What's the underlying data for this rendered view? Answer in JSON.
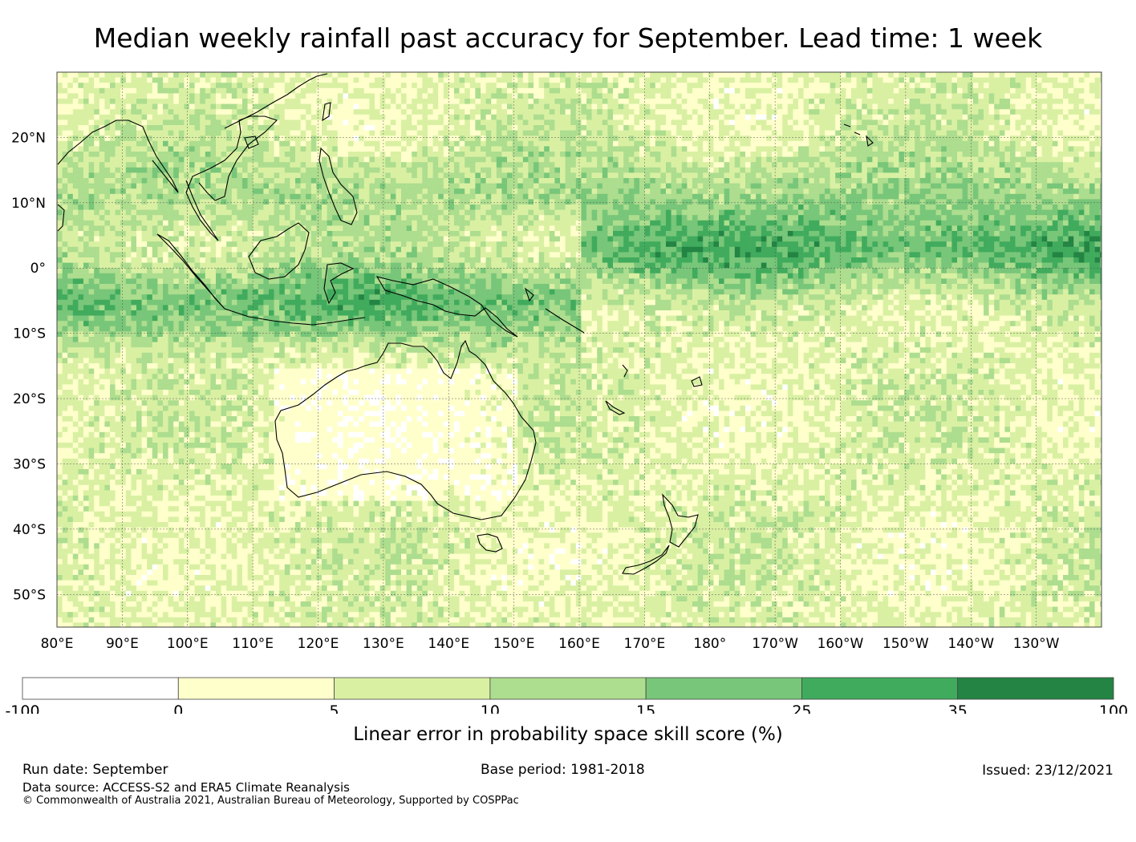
{
  "title": "Median weekly rainfall past accuracy for September. Lead time: 1 week",
  "map": {
    "lon_labels": [
      "80°E",
      "90°E",
      "100°E",
      "110°E",
      "120°E",
      "130°E",
      "140°E",
      "150°E",
      "160°E",
      "170°E",
      "180°",
      "170°W",
      "160°W",
      "150°W",
      "140°W",
      "130°W"
    ],
    "lat_labels": [
      "20°N",
      "10°N",
      "0°",
      "10°S",
      "20°S",
      "30°S",
      "40°S",
      "50°S"
    ],
    "extent": {
      "lon_min": 80,
      "lon_max": 240,
      "lat_min": -55,
      "lat_max": 30
    }
  },
  "colorbar": {
    "label": "Linear error in probability space skill score (%)",
    "bounds": [
      "-100",
      "0",
      "5",
      "10",
      "15",
      "25",
      "35",
      "100"
    ],
    "colors": [
      "#ffffff",
      "#ffffcc",
      "#d9f0a3",
      "#addd8e",
      "#78c679",
      "#41ab5d",
      "#238443"
    ]
  },
  "footer": {
    "run_date": "Run date: September",
    "base_period": "Base period: 1981-2018",
    "issued": "Issued: 23/12/2021",
    "data_source": "Data source: ACCESS-S2 and ERA5 Climate Reanalysis",
    "copyright": "© Commonwealth of Australia 2021, Australian Bureau of Meteorology, Supported by COSPPac"
  }
}
